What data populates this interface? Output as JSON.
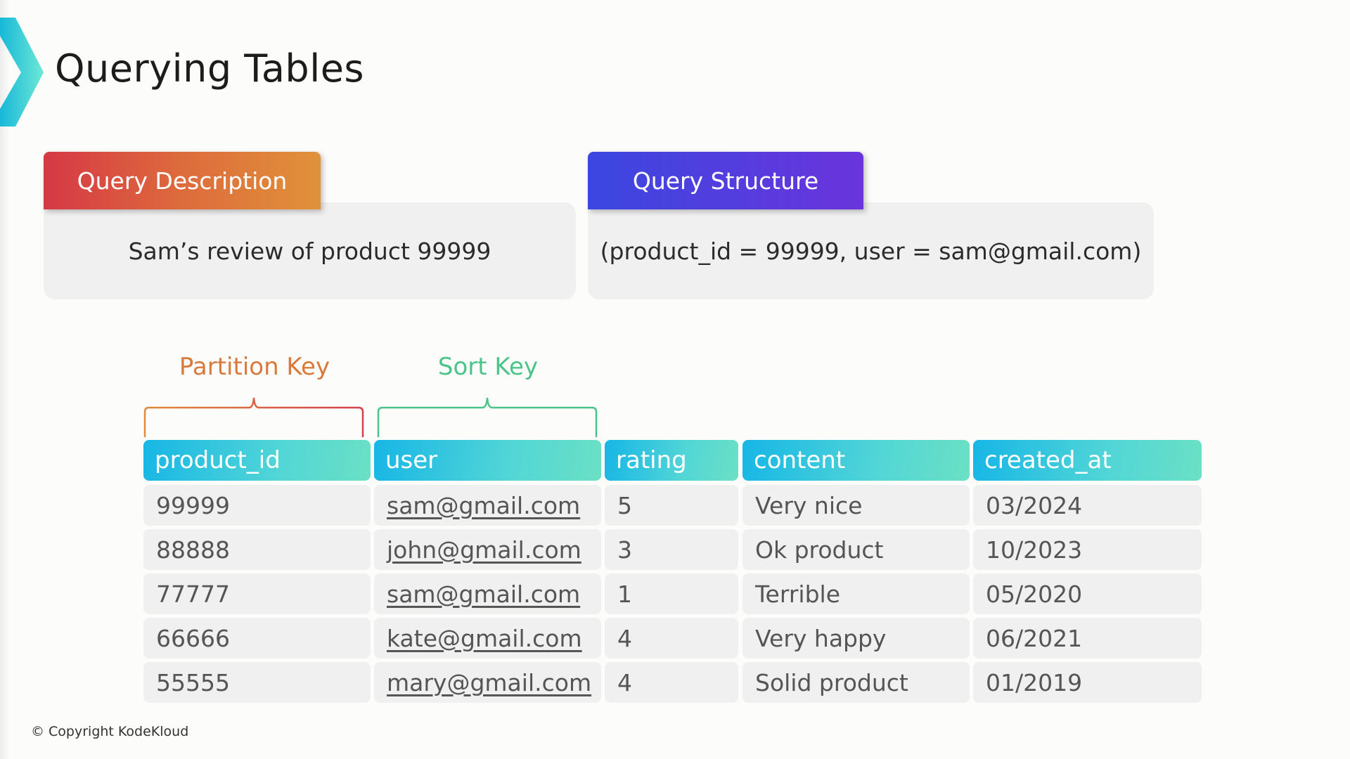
{
  "title": "Querying Tables",
  "query_description": {
    "label": "Query Description",
    "text": "Sam’s review of product 99999"
  },
  "query_structure": {
    "label": "Query Structure",
    "text": "(product_id = 99999, user = sam@gmail.com)"
  },
  "keys": {
    "partition": "Partition Key",
    "sort": "Sort Key"
  },
  "colors": {
    "partition": "#d97a3c",
    "sort": "#4cc489",
    "header": "#16b6e6"
  },
  "table": {
    "headers": [
      "product_id",
      "user",
      "rating",
      "content",
      "created_at"
    ],
    "rows": [
      [
        "99999",
        "sam@gmail.com",
        "5",
        "Very nice",
        "03/2024"
      ],
      [
        "88888",
        "john@gmail.com",
        "3",
        "Ok product",
        "10/2023"
      ],
      [
        "77777",
        "sam@gmail.com",
        "1",
        "Terrible",
        "05/2020"
      ],
      [
        "66666",
        "kate@gmail.com",
        "4",
        "Very happy",
        "06/2021"
      ],
      [
        "55555",
        "mary@gmail.com",
        "4",
        "Solid product",
        "01/2019"
      ]
    ]
  },
  "footer": {
    "copyright": "© Copyright KodeKloud"
  }
}
